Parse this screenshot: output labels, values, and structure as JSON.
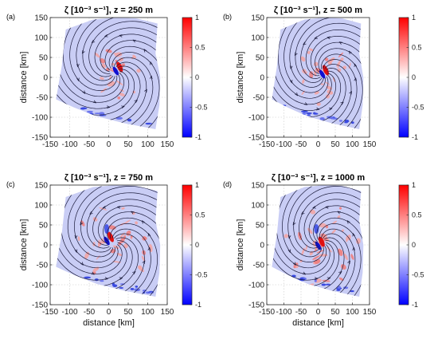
{
  "chart_data": {
    "type": "heatmap",
    "shared": {
      "xlabel": "distance [km]",
      "ylabel": "distance [km]",
      "xlim": [
        -150,
        150
      ],
      "ylim": [
        -150,
        150
      ],
      "xticks": [
        "-150",
        "-100",
        "-50",
        "0",
        "50",
        "100",
        "150"
      ],
      "yticks": [
        "150",
        "100",
        "50",
        "0",
        "-50",
        "-100",
        "-150"
      ],
      "colorbar": {
        "range": [
          -1,
          1
        ],
        "ticks": [
          "1",
          "0.5",
          "0",
          "-0.5",
          "-1"
        ],
        "colormap": "blue-white-red",
        "color_min": "#0000ff",
        "color_mid": "#ffffff",
        "color_max": "#ff0000"
      },
      "overlay": "streamlines with arrows",
      "streamline_color": "#1a1a3a"
    },
    "panels": [
      {
        "label": "(a)",
        "title": "ζ [10⁻³ s⁻¹], z = 250 m"
      },
      {
        "label": "(b)",
        "title": "ζ [10⁻³ s⁻¹], z = 500 m"
      },
      {
        "label": "(c)",
        "title": "ζ [10⁻³ s⁻¹], z = 750 m"
      },
      {
        "label": "(d)",
        "title": "ζ [10⁻³ s⁻¹], z = 1000 m"
      }
    ]
  }
}
